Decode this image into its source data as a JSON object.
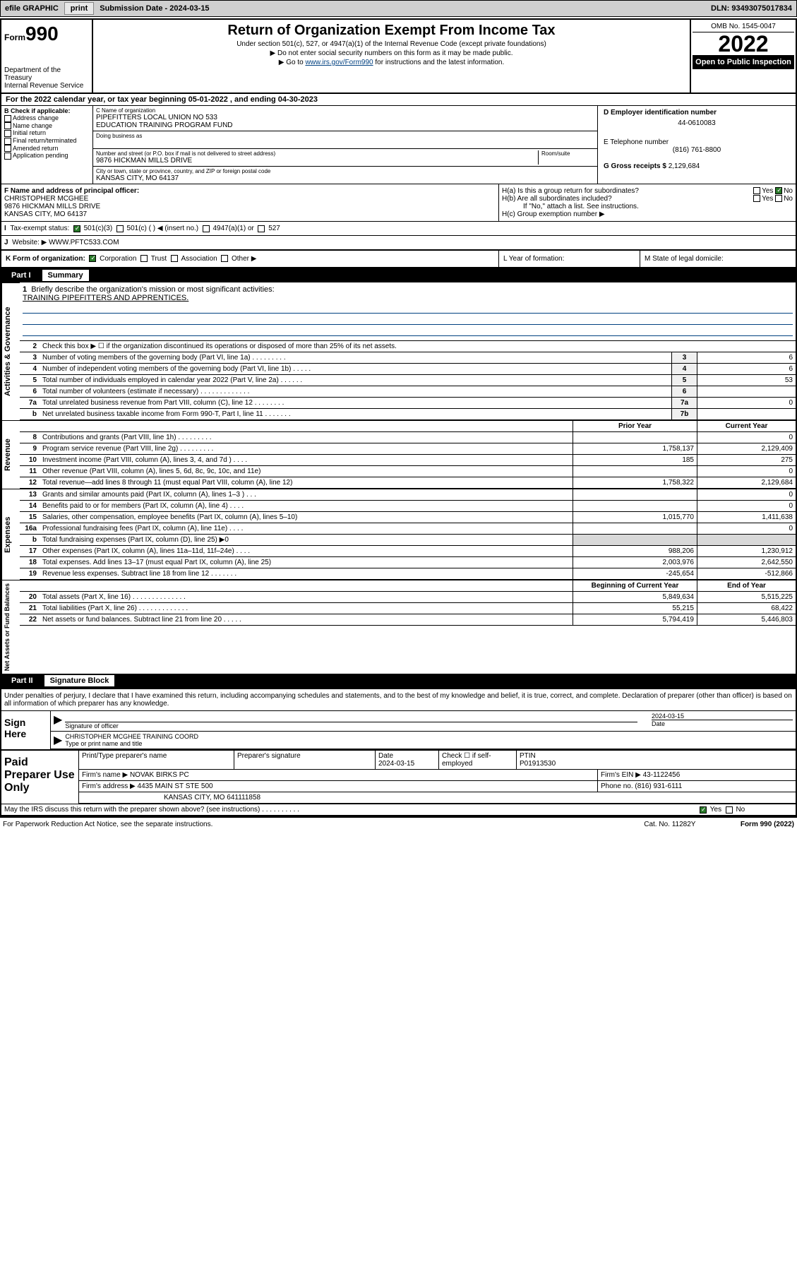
{
  "topbar": {
    "efile": "efile GRAPHIC",
    "print": "print",
    "subdate_label": "Submission Date - ",
    "subdate": "2024-03-15",
    "dln_label": "DLN: ",
    "dln": "93493075017834"
  },
  "hdr": {
    "form_word": "Form",
    "form_num": "990",
    "dept": "Department of the Treasury",
    "irs": "Internal Revenue Service",
    "title": "Return of Organization Exempt From Income Tax",
    "sub1": "Under section 501(c), 527, or 4947(a)(1) of the Internal Revenue Code (except private foundations)",
    "sub2": "▶ Do not enter social security numbers on this form as it may be made public.",
    "sub3_pre": "▶ Go to ",
    "sub3_link": "www.irs.gov/Form990",
    "sub3_post": " for instructions and the latest information.",
    "omb": "OMB No. 1545-0047",
    "year": "2022",
    "open": "Open to Public Inspection"
  },
  "A": {
    "text": "For the 2022 calendar year, or tax year beginning 05-01-2022   , and ending 04-30-2023"
  },
  "B": {
    "label": "B Check if applicable:",
    "items": [
      "Address change",
      "Name change",
      "Initial return",
      "Final return/terminated",
      "Amended return",
      "Application pending"
    ]
  },
  "C": {
    "label": "C Name of organization",
    "name1": "PIPEFITTERS LOCAL UNION NO 533",
    "name2": "EDUCATION TRAINING PROGRAM FUND",
    "dba": "Doing business as",
    "addr_label": "Number and street (or P.O. box if mail is not delivered to street address)",
    "room": "Room/suite",
    "addr": "9876 HICKMAN MILLS DRIVE",
    "city_label": "City or town, state or province, country, and ZIP or foreign postal code",
    "city": "KANSAS CITY, MO  64137"
  },
  "D": {
    "label": "D Employer identification number",
    "ein": "44-0610083"
  },
  "E": {
    "label": "E Telephone number",
    "phone": "(816) 761-8800"
  },
  "G": {
    "label": "G Gross receipts $ ",
    "amt": "2,129,684"
  },
  "F": {
    "label": "F  Name and address of principal officer:",
    "name": "CHRISTOPHER MCGHEE",
    "addr": "9876 HICKMAN MILLS DRIVE",
    "city": "KANSAS CITY, MO  64137"
  },
  "H": {
    "a": "H(a)  Is this a group return for subordinates?",
    "b": "H(b)  Are all subordinates included?",
    "b_note": "If \"No,\" attach a list. See instructions.",
    "c": "H(c)  Group exemption number ▶",
    "yes": "Yes",
    "no": "No"
  },
  "I": {
    "label": "Tax-exempt status:",
    "c3": "501(c)(3)",
    "c": "501(c) (  ) ◀ (insert no.)",
    "a1": "4947(a)(1) or",
    "s527": "527"
  },
  "J": {
    "label": "Website: ▶ ",
    "url": "WWW.PFTC533.COM"
  },
  "K": {
    "label": "K Form of organization:",
    "corp": "Corporation",
    "trust": "Trust",
    "assoc": "Association",
    "other": "Other ▶"
  },
  "L": {
    "label": "L Year of formation:"
  },
  "M": {
    "label": "M State of legal domicile:"
  },
  "part1": {
    "part": "Part I",
    "title": "Summary"
  },
  "gov": {
    "label": "Activities & Governance",
    "l1": "Briefly describe the organization's mission or most significant activities:",
    "l1v": "TRAINING PIPEFITTERS AND APPRENTICES.",
    "l2": "Check this box ▶ ☐  if the organization discontinued its operations or disposed of more than 25% of its net assets.",
    "l3": "Number of voting members of the governing body (Part VI, line 1a)   .    .    .    .    .    .    .    .    .",
    "l3v": "6",
    "l4": "Number of independent voting members of the governing body (Part VI, line 1b)   .    .    .    .    .",
    "l4v": "6",
    "l5": "Total number of individuals employed in calendar year 2022 (Part V, line 2a)   .    .    .    .    .    .",
    "l5v": "53",
    "l6": "Total number of volunteers (estimate if necessary)   .    .    .    .    .    .    .    .    .    .    .    .    .",
    "l6v": "",
    "l7a": "Total unrelated business revenue from Part VIII, column (C), line 12   .    .    .    .    .    .    .    .",
    "l7av": "0",
    "l7b": "Net unrelated business taxable income from Form 990-T, Part I, line 11   .    .    .    .    .    .    .",
    "l7bv": ""
  },
  "colhdr": {
    "prior": "Prior Year",
    "current": "Current Year"
  },
  "rev": {
    "label": "Revenue",
    "r": [
      {
        "n": "8",
        "t": "Contributions and grants (Part VIII, line 1h)   .    .    .    .    .    .    .    .    .",
        "p": "",
        "c": "0"
      },
      {
        "n": "9",
        "t": "Program service revenue (Part VIII, line 2g)   .    .    .    .    .    .    .    .    .",
        "p": "1,758,137",
        "c": "2,129,409"
      },
      {
        "n": "10",
        "t": "Investment income (Part VIII, column (A), lines 3, 4, and 7d )   .    .    .    .",
        "p": "185",
        "c": "275"
      },
      {
        "n": "11",
        "t": "Other revenue (Part VIII, column (A), lines 5, 6d, 8c, 9c, 10c, and 11e)",
        "p": "",
        "c": "0"
      },
      {
        "n": "12",
        "t": "Total revenue—add lines 8 through 11 (must equal Part VIII, column (A), line 12)",
        "p": "1,758,322",
        "c": "2,129,684"
      }
    ]
  },
  "exp": {
    "label": "Expenses",
    "r": [
      {
        "n": "13",
        "t": "Grants and similar amounts paid (Part IX, column (A), lines 1–3 )   .    .    .",
        "p": "",
        "c": "0"
      },
      {
        "n": "14",
        "t": "Benefits paid to or for members (Part IX, column (A), line 4)   .    .    .    .",
        "p": "",
        "c": "0"
      },
      {
        "n": "15",
        "t": "Salaries, other compensation, employee benefits (Part IX, column (A), lines 5–10)",
        "p": "1,015,770",
        "c": "1,411,638"
      },
      {
        "n": "16a",
        "t": "Professional fundraising fees (Part IX, column (A), line 11e)   .    .    .    .",
        "p": "",
        "c": "0"
      },
      {
        "n": "b",
        "t": "Total fundraising expenses (Part IX, column (D), line 25) ▶0",
        "p": "gray",
        "c": "gray"
      },
      {
        "n": "17",
        "t": "Other expenses (Part IX, column (A), lines 11a–11d, 11f–24e)   .    .    .    .",
        "p": "988,206",
        "c": "1,230,912"
      },
      {
        "n": "18",
        "t": "Total expenses. Add lines 13–17 (must equal Part IX, column (A), line 25)",
        "p": "2,003,976",
        "c": "2,642,550"
      },
      {
        "n": "19",
        "t": "Revenue less expenses. Subtract line 18 from line 12   .    .    .    .    .    .    .",
        "p": "-245,654",
        "c": "-512,866"
      }
    ]
  },
  "net": {
    "label": "Net Assets or Fund Balances",
    "hdr1": "Beginning of Current Year",
    "hdr2": "End of Year",
    "r": [
      {
        "n": "20",
        "t": "Total assets (Part X, line 16)   .    .    .    .    .    .    .    .    .    .    .    .    .    .",
        "p": "5,849,634",
        "c": "5,515,225"
      },
      {
        "n": "21",
        "t": "Total liabilities (Part X, line 26)   .    .    .    .    .    .    .    .    .    .    .    .    .",
        "p": "55,215",
        "c": "68,422"
      },
      {
        "n": "22",
        "t": "Net assets or fund balances. Subtract line 21 from line 20   .    .    .    .    .",
        "p": "5,794,419",
        "c": "5,446,803"
      }
    ]
  },
  "part2": {
    "part": "Part II",
    "title": "Signature Block"
  },
  "sig": {
    "decl": "Under penalties of perjury, I declare that I have examined this return, including accompanying schedules and statements, and to the best of my knowledge and belief, it is true, correct, and complete. Declaration of preparer (other than officer) is based on all information of which preparer has any knowledge.",
    "sign": "Sign Here",
    "sigoff": "Signature of officer",
    "date": "Date",
    "datev": "2024-03-15",
    "name": "CHRISTOPHER MCGHEE  TRAINING COORD",
    "name_lbl": "Type or print name and title"
  },
  "paid": {
    "label": "Paid Preparer Use Only",
    "h": [
      "Print/Type preparer's name",
      "Preparer's signature",
      "Date",
      "",
      "PTIN"
    ],
    "date": "2024-03-15",
    "chk": "Check ☐ if self-employed",
    "ptin": "P01913530",
    "firm_lbl": "Firm's name    ▶ ",
    "firm": "NOVAK BIRKS PC",
    "ein_lbl": "Firm's EIN ▶ ",
    "ein": "43-1122456",
    "addr_lbl": "Firm's address ▶ ",
    "addr": "4435 MAIN ST STE 500",
    "phone_lbl": "Phone no. ",
    "phone": "(816) 931-6111",
    "city": "KANSAS CITY, MO  641111858"
  },
  "discuss": {
    "q": "May the IRS discuss this return with the preparer shown above? (see instructions)   .    .    .    .    .    .    .    .    .    .",
    "yes": "Yes",
    "no": "No"
  },
  "footer": {
    "l": "For Paperwork Reduction Act Notice, see the separate instructions.",
    "c": "Cat. No. 11282Y",
    "r": "Form 990 (2022)"
  }
}
